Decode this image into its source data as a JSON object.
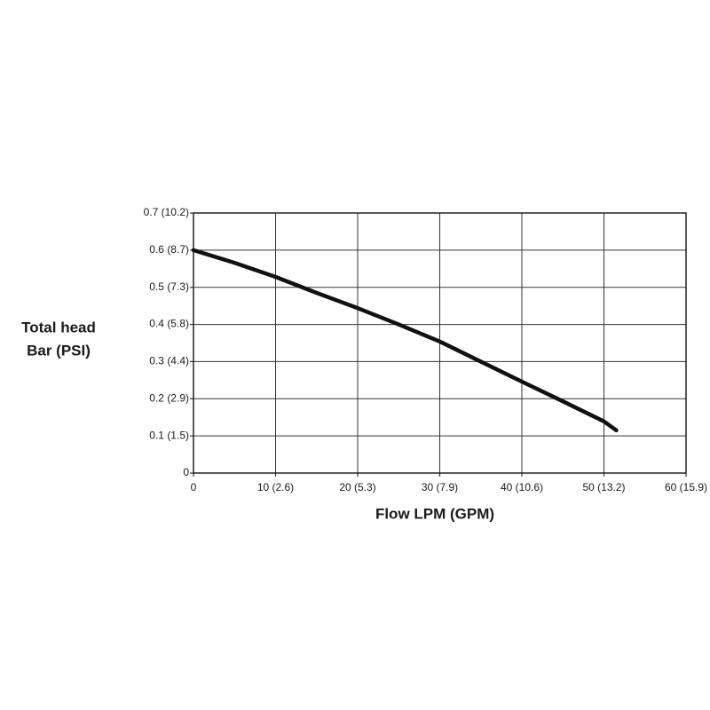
{
  "chart_data": {
    "type": "line",
    "xlabel": "Flow LPM (GPM)",
    "ylabel": [
      "Total head",
      "Bar (PSI)"
    ],
    "x": [
      0,
      5,
      10,
      15,
      20,
      25,
      30,
      35,
      40,
      45,
      50,
      51.5
    ],
    "series": [
      {
        "color": "#111111",
        "values": [
          0.6,
          0.566,
          0.528,
          0.485,
          0.444,
          0.4,
          0.354,
          0.3,
          0.246,
          0.193,
          0.139,
          0.115
        ]
      }
    ],
    "xlim": [
      0,
      60
    ],
    "ylim": [
      0,
      0.7
    ],
    "xticks": [
      0,
      {
        "value": 10,
        "label": "10 (2.6)"
      },
      {
        "value": 20,
        "label": "20 (5.3)"
      },
      {
        "value": 30,
        "label": "30 (7.9)"
      },
      {
        "value": 40,
        "label": "40 (10.6)"
      },
      {
        "value": 50,
        "label": "50 (13.2)"
      },
      {
        "value": 60,
        "label": "60 (15.9)"
      }
    ],
    "yticks": [
      0,
      {
        "value": 0.1,
        "label": "0.1 (1.5)"
      },
      {
        "value": 0.2,
        "label": "0.2 (2.9)"
      },
      {
        "value": 0.3,
        "label": "0.3 (4.4)"
      },
      {
        "value": 0.4,
        "label": "0.4 (5.8)"
      },
      {
        "value": 0.5,
        "label": "0.5 (7.3)"
      },
      {
        "value": 0.6,
        "label": "0.6 (8.7)"
      },
      {
        "value": 0.7,
        "label": "0.7 (10.2)"
      }
    ],
    "grid": true
  }
}
